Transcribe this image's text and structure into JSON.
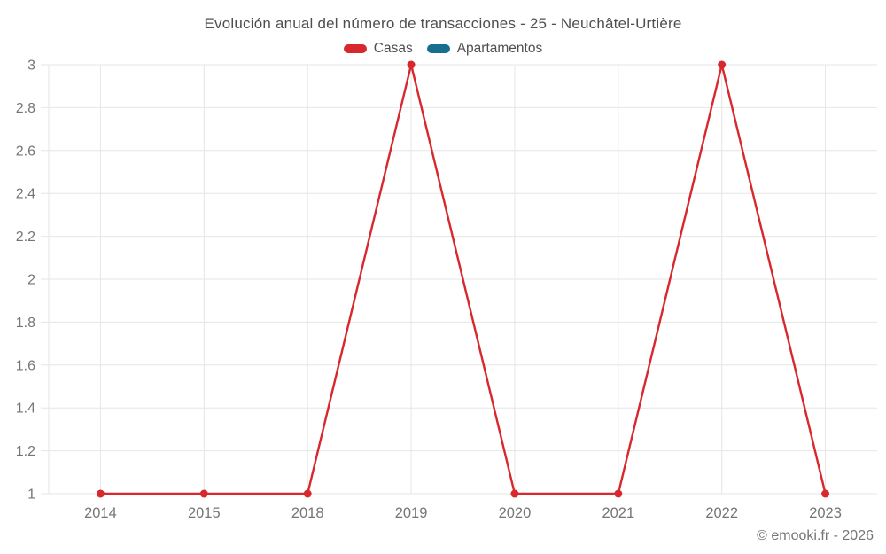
{
  "title": "Evolución anual del número de transacciones - 25 - Neuchâtel-Urtière",
  "footer": {
    "text": "© emooki.fr - 2026"
  },
  "colors": {
    "casas": "#d7282e",
    "apartamentos": "#176e8e",
    "gridline": "#e6e6e6",
    "axis_label": "#757575",
    "title_text": "#4f4f4f"
  },
  "legend": {
    "items": [
      {
        "label": "Casas",
        "color": "#d7282e"
      },
      {
        "label": "Apartamentos",
        "color": "#176e8e"
      }
    ]
  },
  "chart_data": {
    "type": "line",
    "title": "Evolución anual del número de transacciones - 25 - Neuchâtel-Urtière",
    "xlabel": "",
    "ylabel": "",
    "categories": [
      "2014",
      "2015",
      "2018",
      "2019",
      "2020",
      "2021",
      "2022",
      "2023"
    ],
    "series": [
      {
        "name": "Casas",
        "color": "#d7282e",
        "values": [
          1,
          1,
          1,
          3,
          1,
          1,
          3,
          1
        ]
      },
      {
        "name": "Apartamentos",
        "color": "#176e8e",
        "values": []
      }
    ],
    "ylim": [
      1,
      3
    ],
    "yticks": [
      1,
      1.2,
      1.4,
      1.6,
      1.8,
      2,
      2.2,
      2.4,
      2.6,
      2.8,
      3
    ],
    "grid": true,
    "legend_position": "top"
  }
}
